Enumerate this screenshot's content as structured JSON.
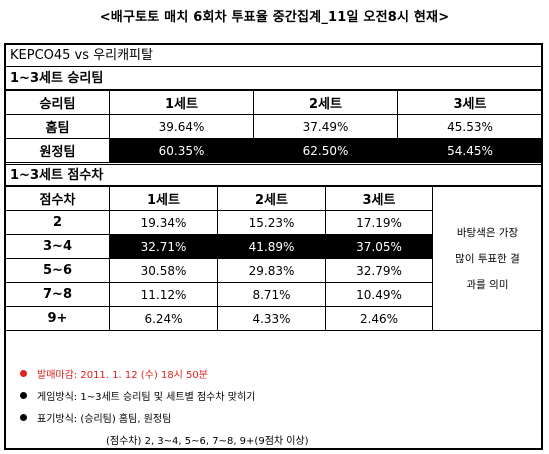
{
  "title": "<배구토토 매치 6회차 투표율 중간집계_11일 오전8시 현재>",
  "match": "KEPCO45 vs 우리캐피탈",
  "win_section": {
    "heading": "1~3세트 승리팀",
    "col_header": "승리팀",
    "sets": [
      "1세트",
      "2세트",
      "3세트"
    ],
    "rows": [
      {
        "label": "홈팀",
        "values": [
          "39.64%",
          "37.49%",
          "45.53%"
        ],
        "highlight": false
      },
      {
        "label": "원정팀",
        "values": [
          "60.35%",
          "62.50%",
          "54.45%"
        ],
        "highlight": true
      }
    ]
  },
  "diff_section": {
    "heading": "1~3세트 점수차",
    "col_header": "점수차",
    "sets": [
      "1세트",
      "2세트",
      "3세트"
    ],
    "rows": [
      {
        "label": "2",
        "values": [
          "19.34%",
          "15.23%",
          "17.19%"
        ],
        "highlight": false
      },
      {
        "label": "3~4",
        "values": [
          "32.71%",
          "41.89%",
          "37.05%"
        ],
        "highlight": true
      },
      {
        "label": "5~6",
        "values": [
          "30.58%",
          "29.83%",
          "32.79%"
        ],
        "highlight": false
      },
      {
        "label": "7~8",
        "values": [
          "11.12%",
          "8.71%",
          "10.49%"
        ],
        "highlight": false
      },
      {
        "label": "9+",
        "values": [
          "6.24%",
          "4.33%",
          "2.46%"
        ],
        "highlight": false
      }
    ],
    "side_note": [
      "바탕색은 가장",
      "많이 투표한 결",
      "과를 의미"
    ]
  },
  "notes": [
    {
      "text": "발매마감: 2011. 1. 12 (수) 18시 50분",
      "bullet_color": "#e02020",
      "text_color": "#e02020"
    },
    {
      "text": "게임방식: 1~3세트 승리팀 및 세트별 점수차 맞히기",
      "bullet_color": "#000000",
      "text_color": "#000000"
    },
    {
      "text": "표기방식: (승리팀) 홈팀, 원정팀",
      "bullet_color": "#000000",
      "text_color": "#000000"
    },
    {
      "text": "(점수차) 2, 3~4, 5~6, 7~8, 9+(9점차 이상)",
      "bullet_color": "",
      "text_color": "#000000"
    }
  ]
}
